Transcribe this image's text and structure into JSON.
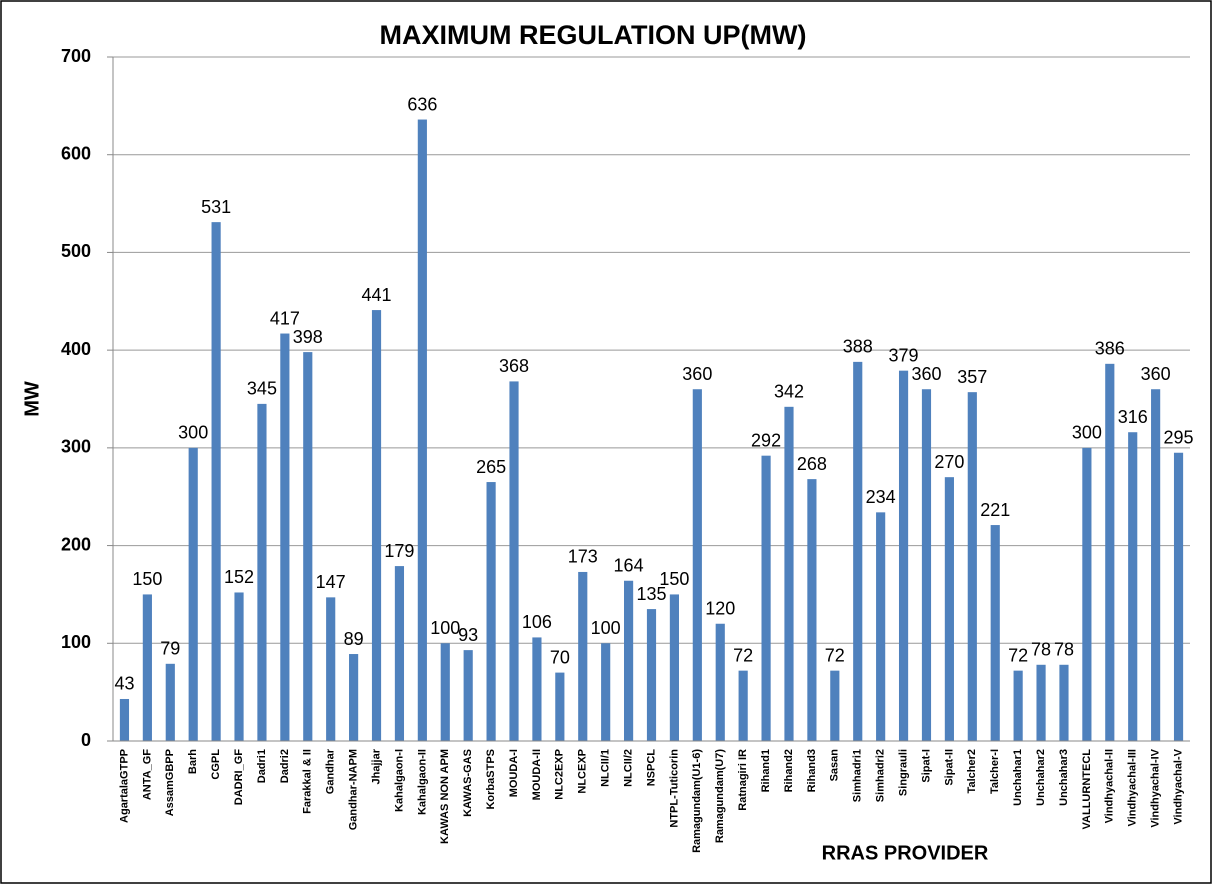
{
  "chart_data": {
    "type": "bar",
    "title": "MAXIMUM REGULATION UP(MW)",
    "x_label": "RRAS PROVIDER",
    "y_label": "MW",
    "categories": [
      "AgartalaGTPP",
      "ANTA_GF",
      "AssamGBPP",
      "Barh",
      "CGPL",
      "DADRI_GF",
      "Dadri1",
      "Dadri2",
      "Farakkal & II",
      "Gandhar",
      "Gandhar-NAPM",
      "Jhajjar",
      "Kahalgaon-I",
      "Kahalgaon-II",
      "KAWAS NON APM",
      "KAWAS-GAS",
      "KorbaSTPS",
      "MOUDA-I",
      "MOUDA-II",
      "NLC2EXP",
      "NLCEXP",
      "NLCII/1",
      "NLCII/2",
      "NSPCL",
      "NTPL-Tuticorin",
      "Ramagundam(U1-6)",
      "Ramagundam(U7)",
      "Ratnagiri IR",
      "Rihand1",
      "Rihand2",
      "Rihand3",
      "Sasan",
      "Simhadri1",
      "Simhadri2",
      "Singrauli",
      "Sipat-I",
      "Sipat-II",
      "Talcher2",
      "Talcher-I",
      "Unchahar1",
      "Unchahar2",
      "Unchahar3",
      "VALLURNTECL",
      "Vindhyachal-II",
      "Vindhyachal-III",
      "Vindhyachal-IV",
      "Vindhyachal-V"
    ],
    "values": [
      43,
      150,
      79,
      300,
      531,
      152,
      345,
      417,
      398,
      147,
      89,
      441,
      179,
      636,
      100,
      93,
      265,
      368,
      106,
      70,
      173,
      100,
      164,
      135,
      150,
      360,
      120,
      72,
      292,
      342,
      268,
      72,
      388,
      234,
      379,
      360,
      270,
      357,
      221,
      72,
      78,
      78,
      300,
      386,
      316,
      360,
      295
    ],
    "color": "#4f81bd",
    "ylim": [
      0,
      700
    ],
    "yticks": [
      0,
      100,
      200,
      300,
      400,
      500,
      600,
      700
    ],
    "grid": true
  }
}
